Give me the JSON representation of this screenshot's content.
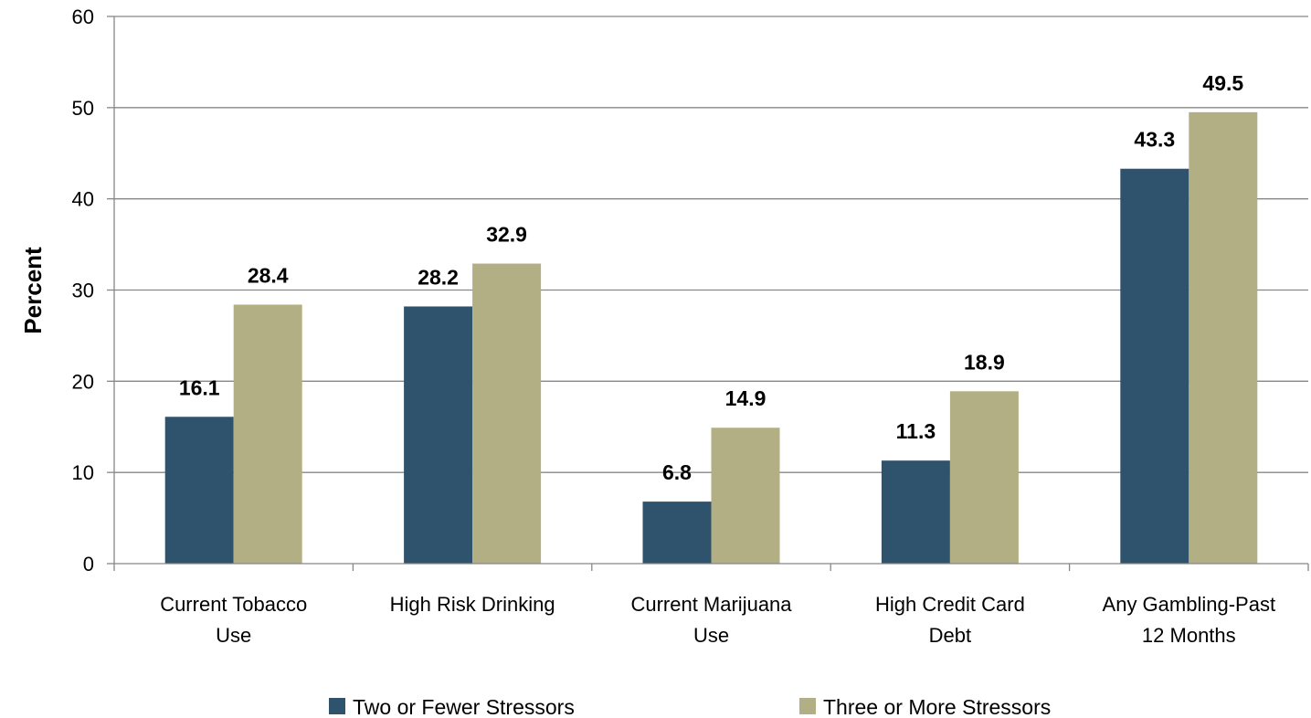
{
  "chart_data": {
    "type": "bar",
    "title": "",
    "xlabel": "",
    "ylabel": "Percent",
    "ylim": [
      0,
      60
    ],
    "yticks": [
      0,
      10,
      20,
      30,
      40,
      50,
      60
    ],
    "grid": true,
    "legend_position": "bottom",
    "categories": [
      [
        "Current Tobacco",
        "Use"
      ],
      [
        "High Risk Drinking"
      ],
      [
        "Current Marijuana",
        "Use"
      ],
      [
        "High Credit Card",
        "Debt"
      ],
      [
        "Any Gambling-Past",
        "12 Months"
      ]
    ],
    "series": [
      {
        "name": "Two or Fewer Stressors",
        "color": "#2F526D",
        "values": [
          16.1,
          28.2,
          6.8,
          11.3,
          43.3
        ]
      },
      {
        "name": "Three or More Stressors",
        "color": "#B2AF84",
        "values": [
          28.4,
          32.9,
          14.9,
          18.9,
          49.5
        ]
      }
    ]
  }
}
